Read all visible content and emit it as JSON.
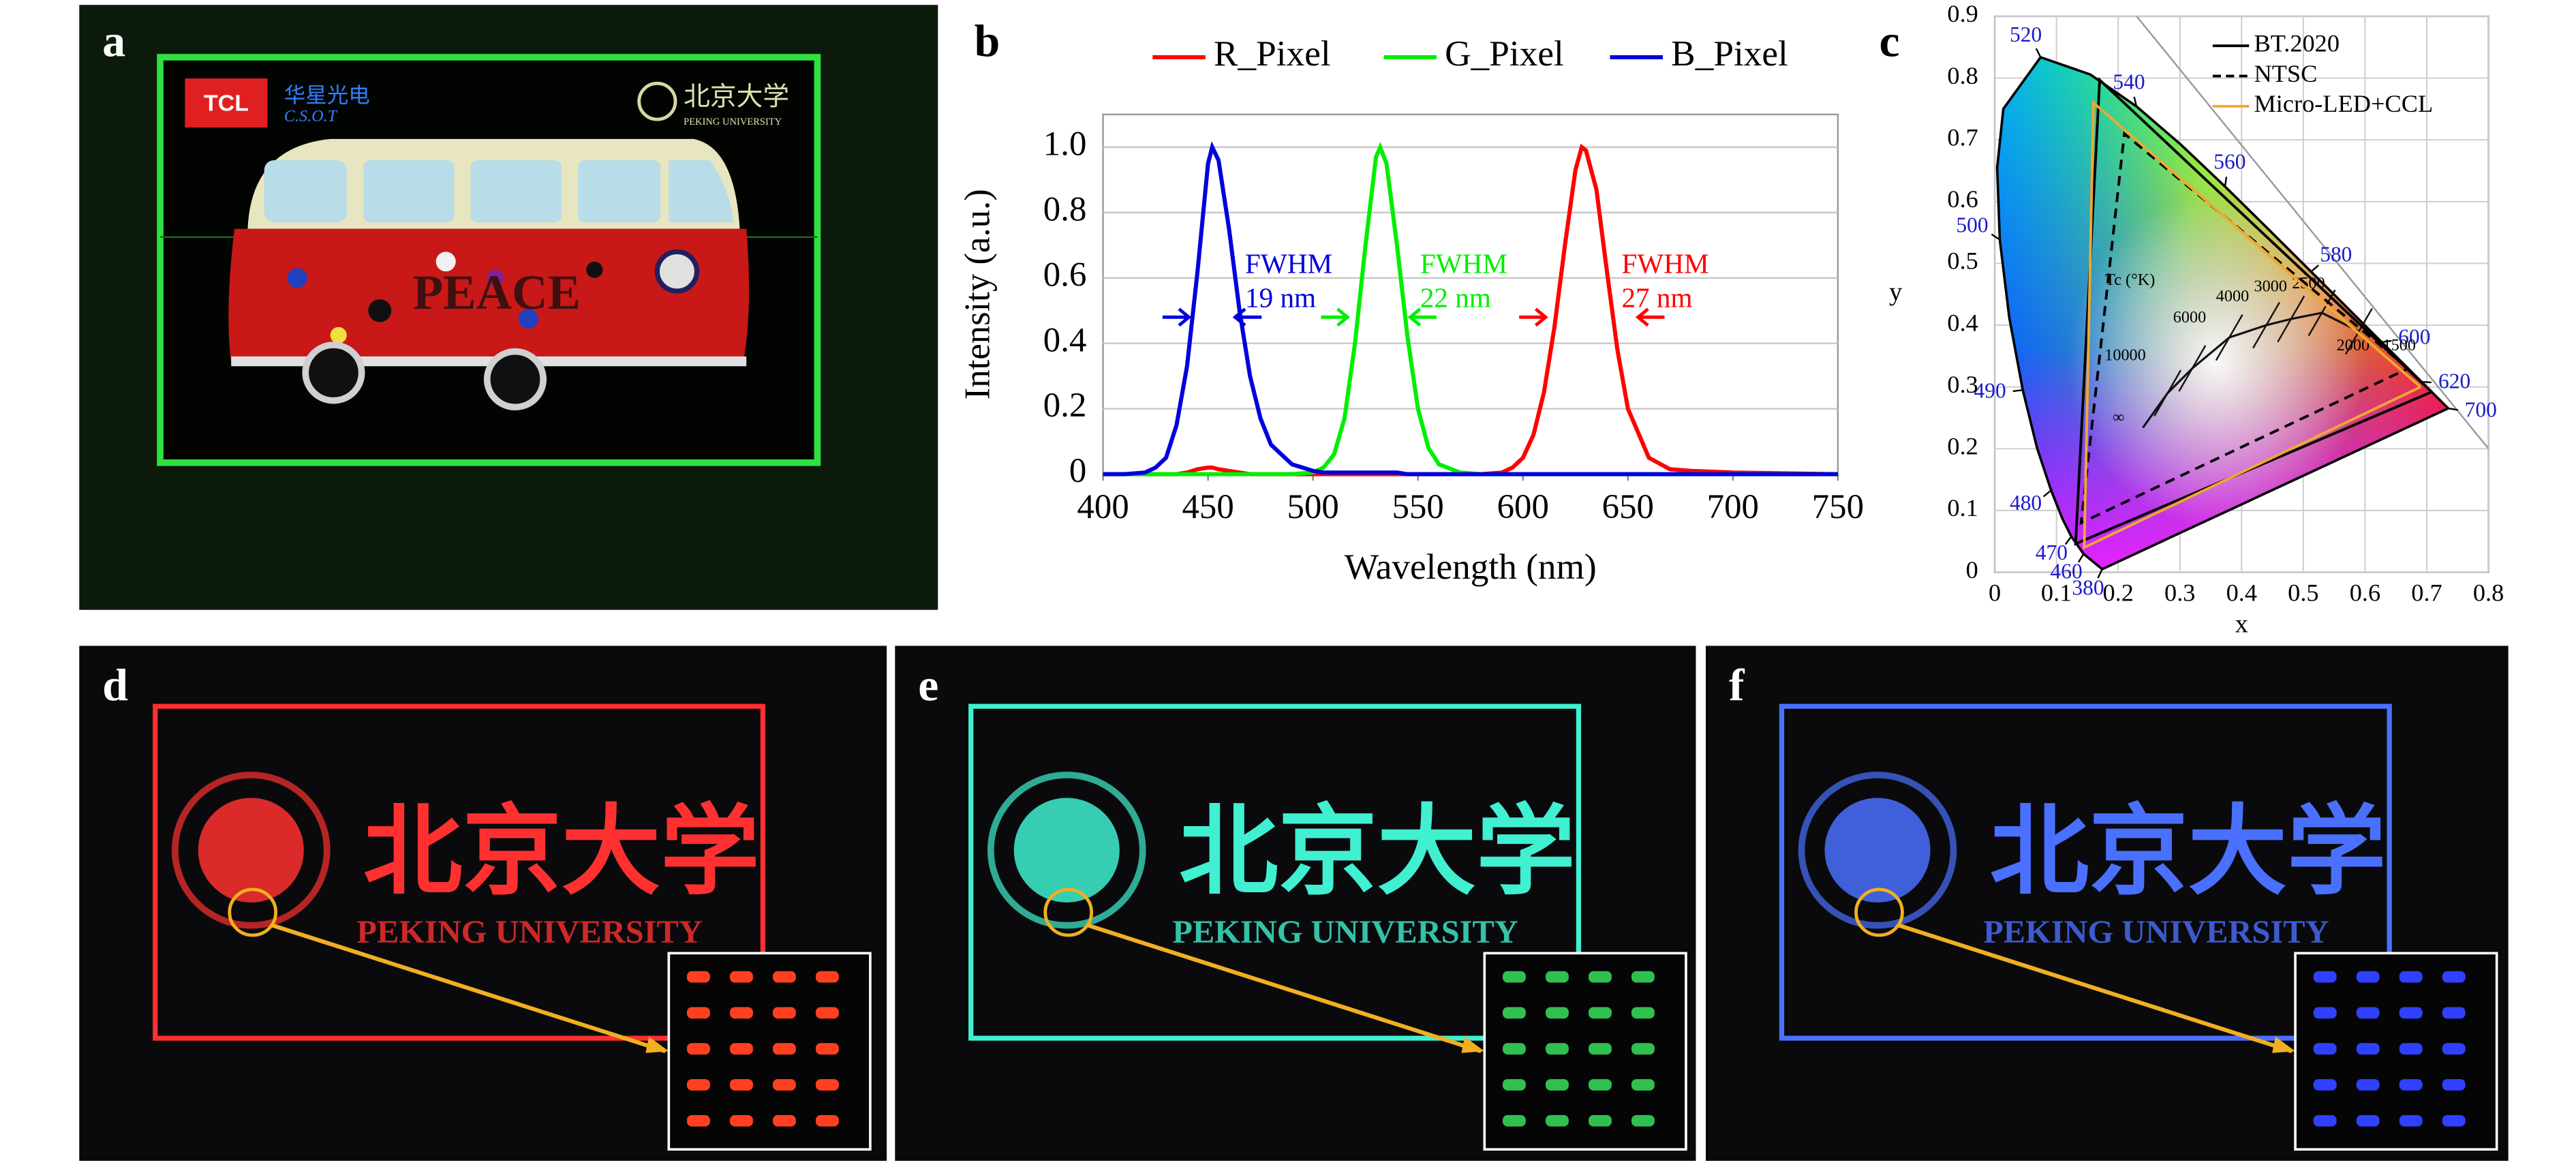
{
  "panel_labels": [
    "a",
    "b",
    "c",
    "d",
    "e",
    "f"
  ],
  "photo_text": {
    "tcl": "TCL",
    "csot_cn": "华星光电",
    "csot": "C.S.O.T",
    "pku_cn": "北京大学",
    "pku": "PEKING UNIVERSITY",
    "peace": "PEACE"
  },
  "chart_data": [
    {
      "type": "line",
      "xlabel": "Wavelength (nm)",
      "ylabel": "Intensity (a.u.)",
      "x": [
        400,
        410,
        420,
        425,
        430,
        435,
        440,
        445,
        450,
        452,
        455,
        460,
        465,
        470,
        475,
        480,
        490,
        500,
        505,
        510,
        515,
        520,
        525,
        530,
        532,
        535,
        540,
        545,
        550,
        555,
        560,
        570,
        580,
        590,
        595,
        600,
        605,
        610,
        615,
        620,
        625,
        628,
        630,
        635,
        640,
        645,
        650,
        660,
        670,
        680,
        700,
        750
      ],
      "series": [
        {
          "name": "R_Pixel",
          "color": "#ff0000",
          "values": [
            0,
            0,
            0,
            0,
            0,
            0,
            0.005,
            0.015,
            0.02,
            0.02,
            0.015,
            0.01,
            0.005,
            0,
            0,
            0,
            0,
            0,
            0,
            0,
            0,
            0,
            0,
            0,
            0,
            0,
            0,
            0,
            0,
            0,
            0,
            0,
            0,
            0.005,
            0.02,
            0.05,
            0.12,
            0.25,
            0.45,
            0.7,
            0.93,
            1.0,
            0.99,
            0.87,
            0.62,
            0.38,
            0.2,
            0.05,
            0.015,
            0.01,
            0.005,
            0
          ]
        },
        {
          "name": "G_Pixel",
          "color": "#00ee00",
          "values": [
            0,
            0,
            0,
            0,
            0,
            0,
            0,
            0,
            0,
            0,
            0,
            0,
            0,
            0,
            0,
            0,
            0,
            0.005,
            0.02,
            0.06,
            0.17,
            0.4,
            0.7,
            0.97,
            1.0,
            0.95,
            0.7,
            0.42,
            0.2,
            0.08,
            0.03,
            0.005,
            0,
            0,
            0,
            0,
            0,
            0,
            0,
            0,
            0,
            0,
            0,
            0,
            0,
            0,
            0,
            0,
            0,
            0,
            0,
            0
          ]
        },
        {
          "name": "B_Pixel",
          "color": "#0000dd",
          "values": [
            0,
            0,
            0.005,
            0.02,
            0.05,
            0.15,
            0.33,
            0.62,
            0.95,
            1.0,
            0.96,
            0.75,
            0.5,
            0.3,
            0.17,
            0.09,
            0.03,
            0.01,
            0.005,
            0.005,
            0.005,
            0.005,
            0.005,
            0.005,
            0.005,
            0.005,
            0.005,
            0,
            0,
            0,
            0,
            0,
            0,
            0,
            0,
            0,
            0,
            0,
            0,
            0,
            0,
            0,
            0,
            0,
            0,
            0,
            0,
            0,
            0,
            0,
            0,
            0
          ]
        }
      ],
      "annotations": [
        {
          "lines": [
            "FWHM",
            "19 nm"
          ],
          "color": "#0000dd"
        },
        {
          "lines": [
            "FWHM",
            "22 nm"
          ],
          "color": "#00ee00"
        },
        {
          "lines": [
            "FWHM",
            "27 nm"
          ],
          "color": "#ff0000"
        }
      ],
      "xlim": [
        400,
        750
      ],
      "xticks": [
        400,
        450,
        500,
        550,
        600,
        650,
        700,
        750
      ],
      "ylim": [
        0,
        1.1
      ],
      "yticks": [
        0,
        0.2,
        0.4,
        0.6,
        0.8,
        {
          "value": 1,
          "label": "1.0"
        }
      ],
      "grid": true,
      "legend": "top"
    },
    {
      "type": "chromaticity",
      "xlabel": "x",
      "ylabel": "y",
      "xlim": [
        0,
        0.8
      ],
      "xticks": [
        0,
        0.1,
        0.2,
        0.3,
        0.4,
        0.5,
        0.6,
        0.7,
        0.8
      ],
      "ylim": [
        0,
        0.9
      ],
      "yticks": [
        0,
        0.1,
        0.2,
        0.3,
        0.4,
        0.5,
        0.6,
        0.7,
        0.8,
        0.9
      ],
      "grid": true,
      "legend": "upper right",
      "spectral_locus": {
        "label_color": "#1a1acc",
        "labels": [
          "380",
          "460",
          "470",
          null,
          "480",
          null,
          "490",
          null,
          "500",
          null,
          null,
          "520",
          null,
          "540",
          null,
          "560",
          null,
          "580",
          null,
          "600",
          "620",
          "700"
        ],
        "x": [
          0.1741,
          0.144,
          0.1241,
          0.1096,
          0.0913,
          0.0687,
          0.0454,
          0.0235,
          0.0082,
          0.0039,
          0.0139,
          0.0743,
          0.1547,
          0.2296,
          0.3016,
          0.3731,
          0.4441,
          0.5125,
          0.5752,
          0.627,
          0.6915,
          0.7347
        ],
        "y": [
          0.005,
          0.0297,
          0.0578,
          0.0868,
          0.1327,
          0.2007,
          0.295,
          0.4127,
          0.5384,
          0.6548,
          0.7502,
          0.8338,
          0.8059,
          0.7543,
          0.6923,
          0.6245,
          0.5547,
          0.4866,
          0.4242,
          0.3725,
          0.3083,
          0.2653
        ]
      },
      "planckian_labels": [
        "Tc (°K)",
        "10000",
        "6000",
        "4000",
        "3000",
        "2500",
        "2000",
        "1500",
        "∞"
      ],
      "series": [
        {
          "name": "BT.2020",
          "color": "#000000",
          "dash": false,
          "x": [
            0.708,
            0.17,
            0.131,
            0.708
          ],
          "y": [
            0.292,
            0.797,
            0.046,
            0.292
          ]
        },
        {
          "name": "NTSC",
          "color": "#000000",
          "dash": true,
          "x": [
            0.67,
            0.21,
            0.14,
            0.67
          ],
          "y": [
            0.33,
            0.71,
            0.08,
            0.33
          ]
        },
        {
          "name": "Micro-LED+CCL",
          "color": "#f0a830",
          "dash": false,
          "x": [
            0.69,
            0.16,
            0.145,
            0.69
          ],
          "y": [
            0.3,
            0.76,
            0.04,
            0.3
          ]
        }
      ]
    }
  ]
}
